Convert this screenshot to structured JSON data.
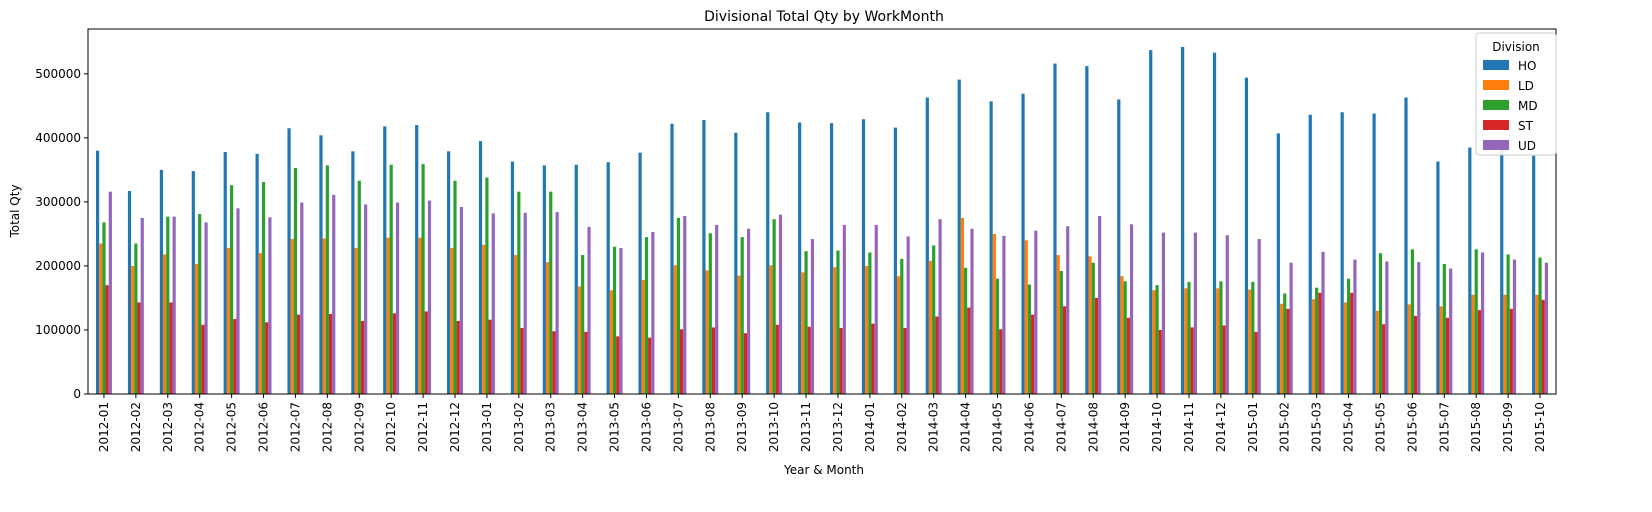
{
  "chart_data": {
    "type": "bar",
    "title": "Divisional Total Qty by WorkMonth",
    "xlabel": "Year & Month",
    "ylabel": "Total Qty",
    "ylim": [
      0,
      570000
    ],
    "yticks": [
      0,
      100000,
      200000,
      300000,
      400000,
      500000
    ],
    "ytick_labels": [
      "0",
      "100000",
      "200000",
      "300000",
      "400000",
      "500000"
    ],
    "grid": false,
    "legend": {
      "title": "Division",
      "placement": "top-right"
    },
    "categories": [
      "2012-01",
      "2012-02",
      "2012-03",
      "2012-04",
      "2012-05",
      "2012-06",
      "2012-07",
      "2012-08",
      "2012-09",
      "2012-10",
      "2012-11",
      "2012-12",
      "2013-01",
      "2013-02",
      "2013-03",
      "2013-04",
      "2013-05",
      "2013-06",
      "2013-07",
      "2013-08",
      "2013-09",
      "2013-10",
      "2013-11",
      "2013-12",
      "2014-01",
      "2014-02",
      "2014-03",
      "2014-04",
      "2014-05",
      "2014-06",
      "2014-07",
      "2014-08",
      "2014-09",
      "2014-10",
      "2014-11",
      "2014-12",
      "2015-01",
      "2015-02",
      "2015-03",
      "2015-04",
      "2015-05",
      "2015-06",
      "2015-07",
      "2015-08",
      "2015-09",
      "2015-10"
    ],
    "series": [
      {
        "name": "HO",
        "color": "#1f77b4",
        "values": [
          380000,
          317000,
          350000,
          348000,
          378000,
          375000,
          415000,
          404000,
          379000,
          418000,
          420000,
          379000,
          395000,
          363000,
          357000,
          358000,
          362000,
          377000,
          422000,
          428000,
          408000,
          440000,
          424000,
          423000,
          429000,
          416000,
          463000,
          491000,
          457000,
          469000,
          516000,
          512000,
          460000,
          537000,
          542000,
          533000,
          494000,
          407000,
          436000,
          440000,
          438000,
          463000,
          363000,
          385000,
          395000,
          372000
        ]
      },
      {
        "name": "LD",
        "color": "#ff7f0e",
        "values": [
          235000,
          200000,
          218000,
          203000,
          228000,
          220000,
          242000,
          243000,
          228000,
          244000,
          244000,
          228000,
          233000,
          217000,
          206000,
          168000,
          162000,
          178000,
          201000,
          193000,
          185000,
          201000,
          190000,
          198000,
          200000,
          184000,
          208000,
          275000,
          250000,
          240000,
          217000,
          215000,
          184000,
          162000,
          165000,
          165000,
          163000,
          141000,
          148000,
          143000,
          130000,
          140000,
          137000,
          155000,
          155000,
          155000
        ]
      },
      {
        "name": "MD",
        "color": "#2ca02c",
        "values": [
          268000,
          235000,
          277000,
          281000,
          326000,
          331000,
          353000,
          357000,
          333000,
          358000,
          359000,
          333000,
          338000,
          316000,
          316000,
          217000,
          230000,
          245000,
          275000,
          251000,
          245000,
          273000,
          223000,
          224000,
          221000,
          211000,
          232000,
          197000,
          180000,
          171000,
          192000,
          205000,
          176000,
          170000,
          175000,
          176000,
          175000,
          157000,
          166000,
          180000,
          220000,
          226000,
          203000,
          226000,
          218000,
          213000
        ]
      },
      {
        "name": "ST",
        "color": "#d62728",
        "values": [
          170000,
          143000,
          143000,
          108000,
          117000,
          112000,
          124000,
          125000,
          114000,
          126000,
          129000,
          114000,
          116000,
          103000,
          98000,
          97000,
          90000,
          88000,
          101000,
          104000,
          95000,
          108000,
          105000,
          103000,
          110000,
          103000,
          121000,
          135000,
          101000,
          124000,
          137000,
          150000,
          119000,
          100000,
          104000,
          107000,
          97000,
          133000,
          158000,
          158000,
          109000,
          122000,
          119000,
          131000,
          133000,
          147000
        ]
      },
      {
        "name": "UD",
        "color": "#9467bd",
        "values": [
          316000,
          275000,
          277000,
          268000,
          290000,
          276000,
          299000,
          311000,
          296000,
          299000,
          302000,
          292000,
          282000,
          283000,
          284000,
          261000,
          228000,
          253000,
          278000,
          264000,
          258000,
          280000,
          242000,
          264000,
          264000,
          246000,
          273000,
          258000,
          247000,
          255000,
          262000,
          278000,
          265000,
          252000,
          252000,
          248000,
          242000,
          205000,
          222000,
          210000,
          207000,
          206000,
          196000,
          221000,
          210000,
          205000
        ]
      }
    ]
  }
}
